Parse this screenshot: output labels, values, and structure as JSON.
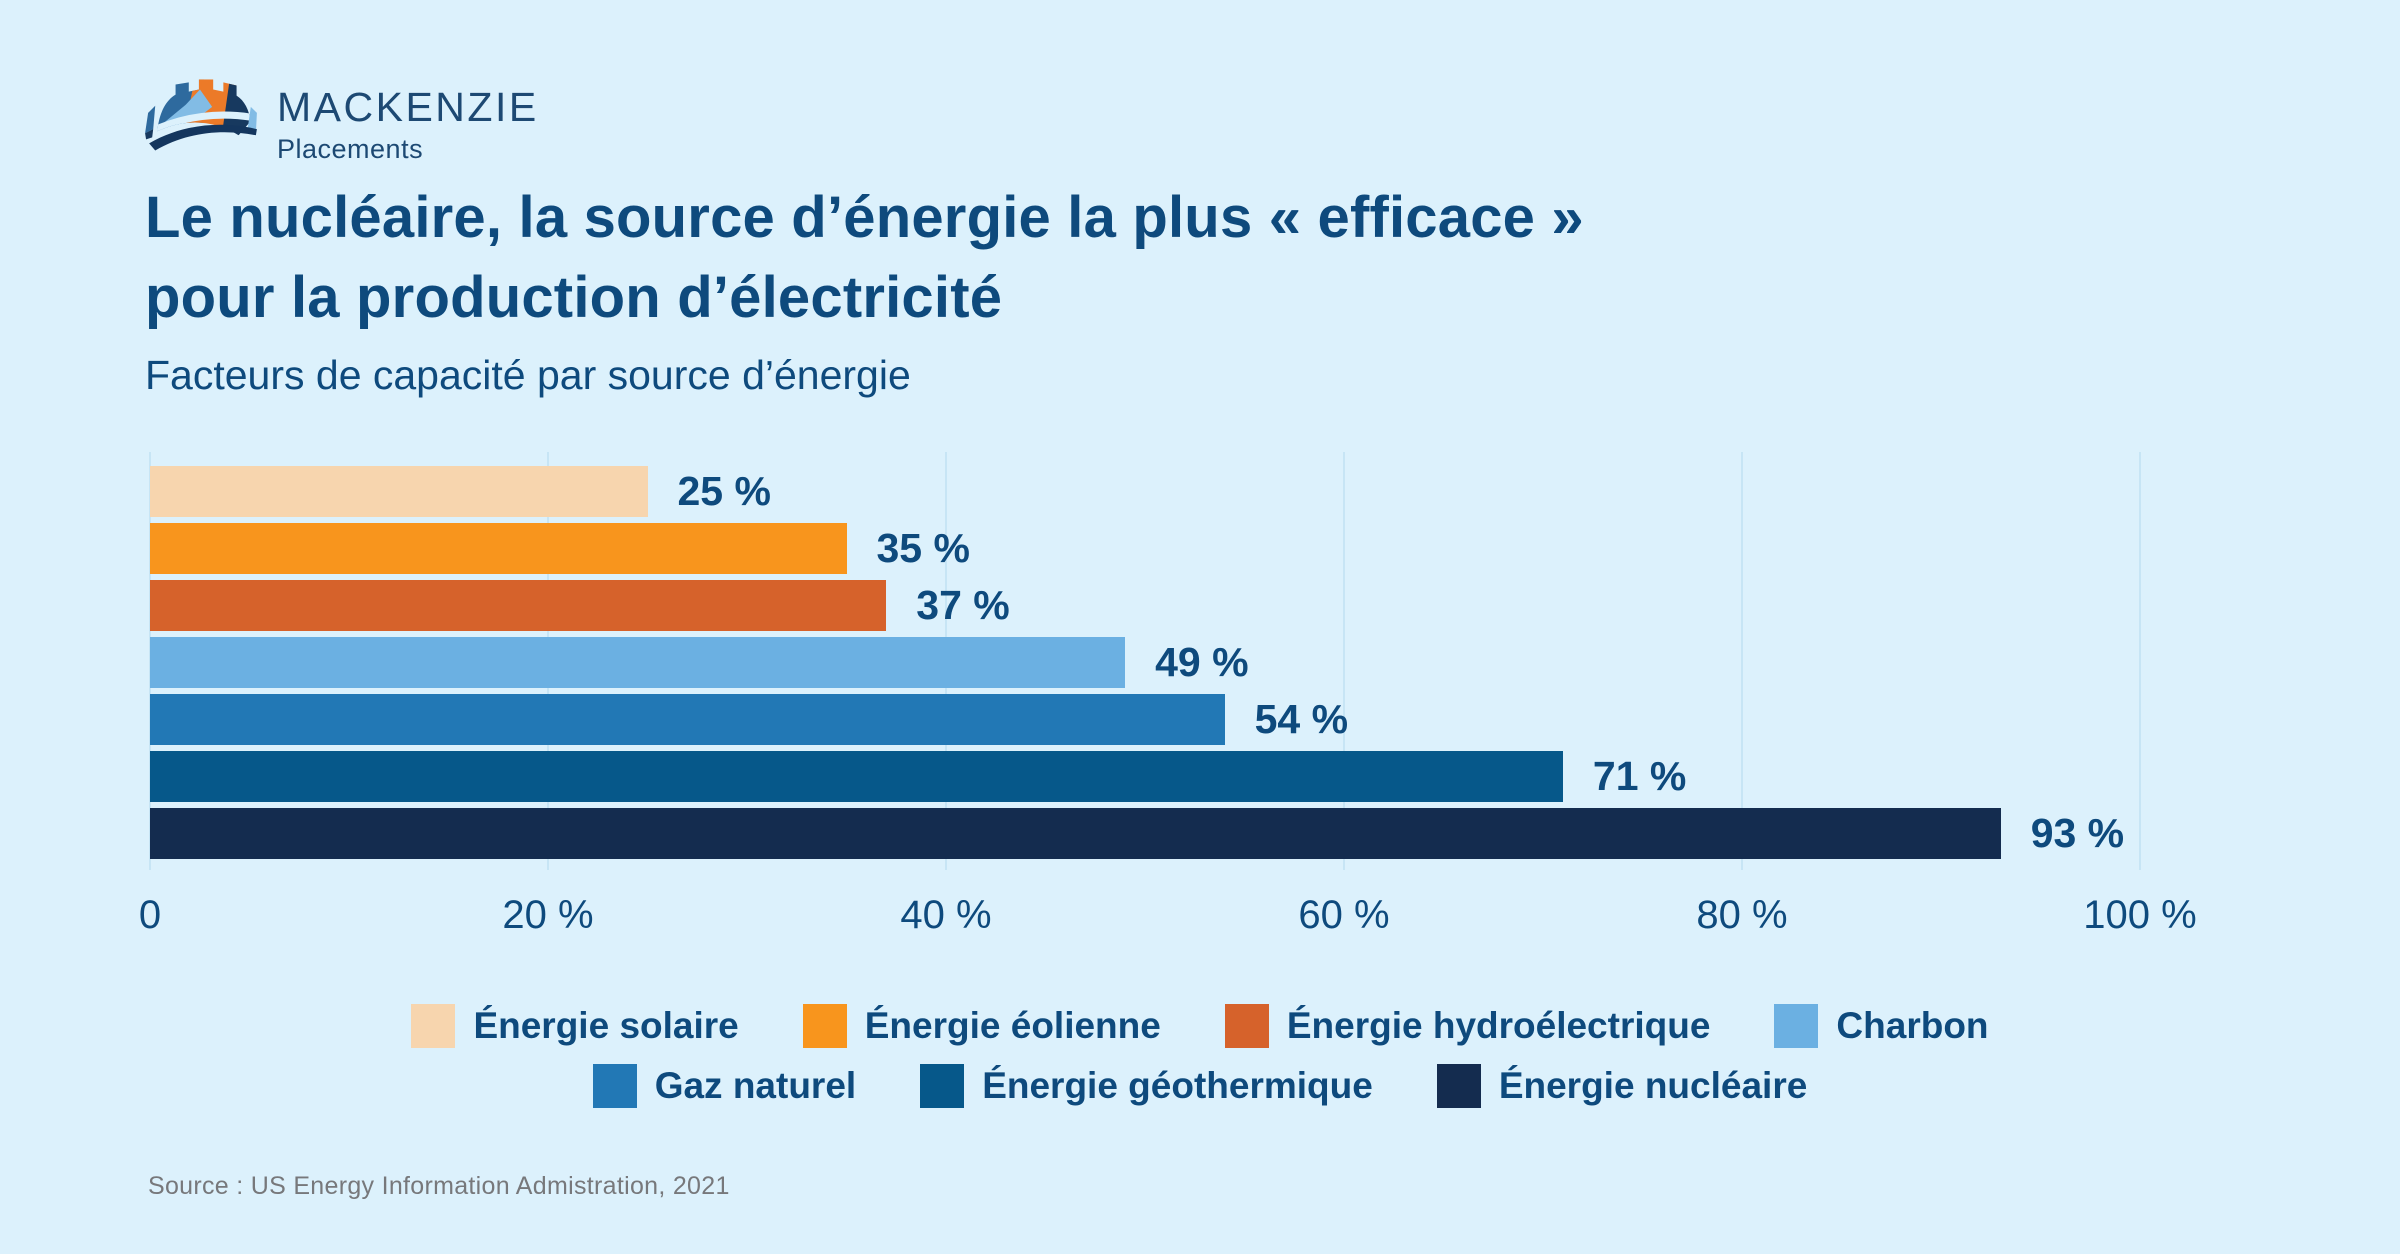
{
  "brand": {
    "name": "MACKENZIE",
    "sub": "Placements"
  },
  "title_lines": [
    "Le nucléaire, la source d’énergie la plus « efficace »",
    "pour la production d’électricité"
  ],
  "subtitle": "Facteurs de capacité par source d’énergie",
  "source": "Source : US Energy Information Admistration, 2021",
  "chart_data": {
    "type": "bar",
    "orientation": "horizontal",
    "title": "Le nucléaire, la source d’énergie la plus « efficace » pour la production d’électricité",
    "subtitle": "Facteurs de capacité par source d’énergie",
    "categories": [
      "Énergie solaire",
      "Énergie éolienne",
      "Énergie hydroélectrique",
      "Charbon",
      "Gaz naturel",
      "Énergie géothermique",
      "Énergie nucléaire"
    ],
    "values": [
      25,
      35,
      37,
      49,
      54,
      71,
      93
    ],
    "value_labels": [
      "25 %",
      "35 %",
      "37 %",
      "49 %",
      "54 %",
      "71 %",
      "93 %"
    ],
    "colors": [
      "#F7D5AE",
      "#F8951D",
      "#D6622B",
      "#6BB0E2",
      "#2278B5",
      "#06588A",
      "#142C4F"
    ],
    "xlim": [
      0,
      100
    ],
    "x_ticks": [
      0,
      20,
      40,
      60,
      80,
      100
    ],
    "x_tick_labels": [
      "0",
      "20 %",
      "40 %",
      "60 %",
      "80 %",
      "100 %"
    ],
    "grid": true,
    "gridline_color": "#C7E5F5",
    "background_color": "#DCF1FC",
    "text_color": "#0E4A7D",
    "legend_position": "bottom"
  },
  "legend": {
    "items": [
      {
        "label": "Énergie solaire",
        "color": "#F7D5AE"
      },
      {
        "label": "Énergie éolienne",
        "color": "#F8951D"
      },
      {
        "label": "Énergie hydroélectrique",
        "color": "#D6622B"
      },
      {
        "label": "Charbon",
        "color": "#6BB0E2"
      },
      {
        "label": "Gaz naturel",
        "color": "#2278B5"
      },
      {
        "label": "Énergie géothermique",
        "color": "#06588A"
      },
      {
        "label": "Énergie nucléaire",
        "color": "#142C4F"
      }
    ]
  }
}
